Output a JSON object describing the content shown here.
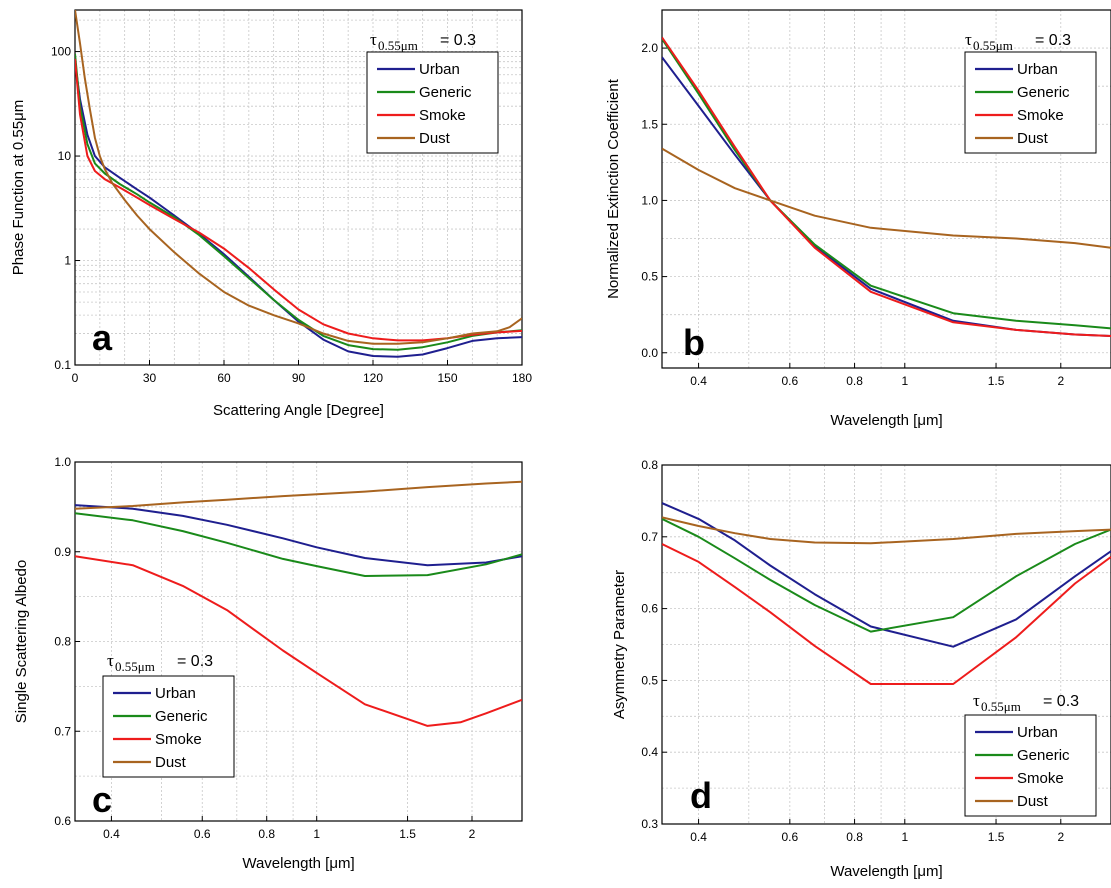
{
  "colors": {
    "Urban": "#1f1f8f",
    "Generic": "#1a8a1a",
    "Smoke": "#ee1c1c",
    "Dust": "#a86420"
  },
  "chart_data": [
    {
      "id": "a",
      "type": "line",
      "panel_label": "a",
      "xlabel": "Scattering Angle [Degree]",
      "ylabel": "Phase Function at 0.55μm",
      "xscale": "linear",
      "yscale": "log",
      "xlim": [
        0,
        180
      ],
      "ylim": [
        0.1,
        250
      ],
      "xticks": [
        0,
        30,
        60,
        90,
        120,
        150,
        180
      ],
      "xticklabels": [
        "0",
        "30",
        "60",
        "90",
        "120",
        "150",
        "180"
      ],
      "yticks": [
        0.1,
        1,
        10,
        100
      ],
      "yticklabels": [
        "0.1",
        "1",
        "10",
        "100"
      ],
      "annotation": {
        "tau": "τ",
        "sub": "0.55μm",
        "eq": "= 0.3"
      },
      "legend": [
        "Urban",
        "Generic",
        "Smoke",
        "Dust"
      ],
      "legend_position": "top-right",
      "series": [
        {
          "name": "Urban",
          "x": [
            0,
            2,
            5,
            8,
            12,
            18,
            25,
            30,
            40,
            50,
            60,
            70,
            80,
            90,
            100,
            110,
            120,
            130,
            140,
            150,
            160,
            170,
            180
          ],
          "y": [
            80,
            35,
            16,
            10,
            7.8,
            6.2,
            4.8,
            4.0,
            2.7,
            1.8,
            1.15,
            0.7,
            0.42,
            0.26,
            0.175,
            0.135,
            0.122,
            0.12,
            0.126,
            0.145,
            0.17,
            0.18,
            0.185
          ]
        },
        {
          "name": "Generic",
          "x": [
            0,
            2,
            5,
            8,
            12,
            18,
            25,
            30,
            40,
            50,
            60,
            70,
            80,
            90,
            100,
            110,
            120,
            130,
            140,
            150,
            160,
            170,
            180
          ],
          "y": [
            95,
            30,
            13,
            8.5,
            6.8,
            5.4,
            4.3,
            3.6,
            2.6,
            1.75,
            1.1,
            0.68,
            0.42,
            0.27,
            0.19,
            0.155,
            0.142,
            0.14,
            0.148,
            0.165,
            0.19,
            0.205,
            0.215
          ]
        },
        {
          "name": "Smoke",
          "x": [
            0,
            2,
            5,
            8,
            12,
            18,
            25,
            30,
            40,
            50,
            60,
            70,
            80,
            90,
            100,
            110,
            120,
            130,
            140,
            150,
            160,
            170,
            180
          ],
          "y": [
            85,
            25,
            10,
            7.2,
            6.0,
            5.0,
            4.0,
            3.4,
            2.5,
            1.85,
            1.3,
            0.85,
            0.53,
            0.34,
            0.245,
            0.2,
            0.18,
            0.172,
            0.172,
            0.18,
            0.195,
            0.205,
            0.212
          ]
        },
        {
          "name": "Dust",
          "x": [
            0,
            2,
            4,
            6,
            8,
            10,
            12,
            15,
            20,
            25,
            30,
            40,
            50,
            60,
            70,
            80,
            90,
            100,
            110,
            120,
            130,
            140,
            150,
            160,
            170,
            175,
            180
          ],
          "y": [
            250,
            120,
            55,
            28,
            15,
            10,
            7.5,
            5.5,
            3.8,
            2.7,
            2.0,
            1.2,
            0.75,
            0.5,
            0.37,
            0.3,
            0.25,
            0.2,
            0.17,
            0.16,
            0.16,
            0.165,
            0.18,
            0.2,
            0.21,
            0.23,
            0.28
          ]
        }
      ]
    },
    {
      "id": "b",
      "type": "line",
      "panel_label": "b",
      "xlabel": "Wavelength [μm]",
      "ylabel": "Normalized Extinction Coefficient",
      "xscale": "log",
      "yscale": "linear",
      "xlim": [
        0.34,
        2.5
      ],
      "ylim": [
        -0.1,
        2.25
      ],
      "xticks": [
        0.4,
        0.6,
        0.8,
        1,
        1.5,
        2
      ],
      "xticklabels": [
        "0.4",
        "0.6",
        "0.8",
        "1",
        "1.5",
        "2"
      ],
      "yticks": [
        0.0,
        0.5,
        1.0,
        1.5,
        2.0
      ],
      "yticklabels": [
        "0.0",
        "0.5",
        "1.0",
        "1.5",
        "2.0"
      ],
      "annotation": {
        "tau": "τ",
        "sub": "0.55μm",
        "eq": "= 0.3"
      },
      "legend": [
        "Urban",
        "Generic",
        "Smoke",
        "Dust"
      ],
      "legend_position": "top-right",
      "series": [
        {
          "name": "Urban",
          "x": [
            0.34,
            0.4,
            0.47,
            0.55,
            0.67,
            0.86,
            1.24,
            1.64,
            2.13,
            2.5
          ],
          "y": [
            1.94,
            1.62,
            1.3,
            1.0,
            0.7,
            0.42,
            0.21,
            0.15,
            0.12,
            0.11
          ]
        },
        {
          "name": "Generic",
          "x": [
            0.34,
            0.4,
            0.47,
            0.55,
            0.67,
            0.86,
            1.24,
            1.64,
            2.13,
            2.5
          ],
          "y": [
            2.06,
            1.7,
            1.33,
            1.0,
            0.71,
            0.44,
            0.26,
            0.21,
            0.18,
            0.16
          ]
        },
        {
          "name": "Smoke",
          "x": [
            0.34,
            0.4,
            0.47,
            0.55,
            0.67,
            0.86,
            1.24,
            1.64,
            2.13,
            2.5
          ],
          "y": [
            2.07,
            1.72,
            1.35,
            1.0,
            0.69,
            0.4,
            0.2,
            0.15,
            0.12,
            0.11
          ]
        },
        {
          "name": "Dust",
          "x": [
            0.34,
            0.4,
            0.47,
            0.55,
            0.67,
            0.86,
            1.24,
            1.64,
            2.13,
            2.5
          ],
          "y": [
            1.34,
            1.2,
            1.08,
            1.0,
            0.9,
            0.82,
            0.77,
            0.75,
            0.72,
            0.69
          ]
        }
      ]
    },
    {
      "id": "c",
      "type": "line",
      "panel_label": "c",
      "xlabel": "Wavelength [μm]",
      "ylabel": "Single Scattering Albedo",
      "xscale": "log",
      "yscale": "linear",
      "xlim": [
        0.34,
        2.5
      ],
      "ylim": [
        0.6,
        1.0
      ],
      "xticks": [
        0.4,
        0.6,
        0.8,
        1,
        1.5,
        2
      ],
      "xticklabels": [
        "0.4",
        "0.6",
        "0.8",
        "1",
        "1.5",
        "2"
      ],
      "yticks": [
        0.6,
        0.7,
        0.8,
        0.9,
        1.0
      ],
      "yticklabels": [
        "0.6",
        "0.7",
        "0.8",
        "0.9",
        "1.0"
      ],
      "annotation": {
        "tau": "τ",
        "sub": "0.55μm",
        "eq": "= 0.3"
      },
      "legend": [
        "Urban",
        "Generic",
        "Smoke",
        "Dust"
      ],
      "legend_position": "center-left",
      "series": [
        {
          "name": "Urban",
          "x": [
            0.34,
            0.44,
            0.55,
            0.67,
            0.86,
            1.0,
            1.24,
            1.64,
            2.13,
            2.5
          ],
          "y": [
            0.952,
            0.948,
            0.94,
            0.93,
            0.915,
            0.905,
            0.893,
            0.885,
            0.888,
            0.895
          ]
        },
        {
          "name": "Generic",
          "x": [
            0.34,
            0.44,
            0.55,
            0.67,
            0.86,
            1.0,
            1.24,
            1.64,
            2.13,
            2.5
          ],
          "y": [
            0.943,
            0.935,
            0.923,
            0.91,
            0.892,
            0.884,
            0.873,
            0.874,
            0.886,
            0.897
          ]
        },
        {
          "name": "Smoke",
          "x": [
            0.34,
            0.44,
            0.55,
            0.67,
            0.86,
            1.0,
            1.24,
            1.64,
            1.9,
            2.13,
            2.5
          ],
          "y": [
            0.895,
            0.885,
            0.862,
            0.835,
            0.79,
            0.765,
            0.73,
            0.706,
            0.71,
            0.72,
            0.735
          ]
        },
        {
          "name": "Dust",
          "x": [
            0.34,
            0.44,
            0.55,
            0.67,
            0.86,
            1.24,
            1.64,
            2.13,
            2.5
          ],
          "y": [
            0.948,
            0.951,
            0.955,
            0.958,
            0.962,
            0.967,
            0.972,
            0.976,
            0.978
          ]
        }
      ]
    },
    {
      "id": "d",
      "type": "line",
      "panel_label": "d",
      "xlabel": "Wavelength [μm]",
      "ylabel": "Asymmetry Parameter",
      "xscale": "log",
      "yscale": "linear",
      "xlim": [
        0.34,
        2.5
      ],
      "ylim": [
        0.3,
        0.8
      ],
      "xticks": [
        0.4,
        0.6,
        0.8,
        1,
        1.5,
        2
      ],
      "xticklabels": [
        "0.4",
        "0.6",
        "0.8",
        "1",
        "1.5",
        "2"
      ],
      "yticks": [
        0.3,
        0.4,
        0.5,
        0.6,
        0.7,
        0.8
      ],
      "yticklabels": [
        "0.3",
        "0.4",
        "0.5",
        "0.6",
        "0.7",
        "0.8"
      ],
      "annotation": {
        "tau": "τ",
        "sub": "0.55μm",
        "eq": "= 0.3"
      },
      "legend": [
        "Urban",
        "Generic",
        "Smoke",
        "Dust"
      ],
      "legend_position": "bottom-right",
      "series": [
        {
          "name": "Urban",
          "x": [
            0.34,
            0.4,
            0.47,
            0.55,
            0.67,
            0.86,
            1.24,
            1.64,
            2.13,
            2.5
          ],
          "y": [
            0.747,
            0.725,
            0.695,
            0.66,
            0.62,
            0.575,
            0.547,
            0.585,
            0.645,
            0.68
          ]
        },
        {
          "name": "Generic",
          "x": [
            0.34,
            0.4,
            0.47,
            0.55,
            0.67,
            0.86,
            1.24,
            1.64,
            2.13,
            2.5
          ],
          "y": [
            0.725,
            0.7,
            0.67,
            0.64,
            0.605,
            0.568,
            0.588,
            0.645,
            0.69,
            0.71
          ]
        },
        {
          "name": "Smoke",
          "x": [
            0.34,
            0.4,
            0.47,
            0.55,
            0.67,
            0.86,
            1.24,
            1.64,
            2.13,
            2.5
          ],
          "y": [
            0.69,
            0.665,
            0.63,
            0.595,
            0.548,
            0.495,
            0.495,
            0.56,
            0.635,
            0.672
          ]
        },
        {
          "name": "Dust",
          "x": [
            0.34,
            0.4,
            0.47,
            0.55,
            0.67,
            0.86,
            1.24,
            1.64,
            2.13,
            2.5
          ],
          "y": [
            0.727,
            0.715,
            0.705,
            0.697,
            0.692,
            0.691,
            0.697,
            0.704,
            0.708,
            0.71
          ]
        }
      ]
    }
  ]
}
